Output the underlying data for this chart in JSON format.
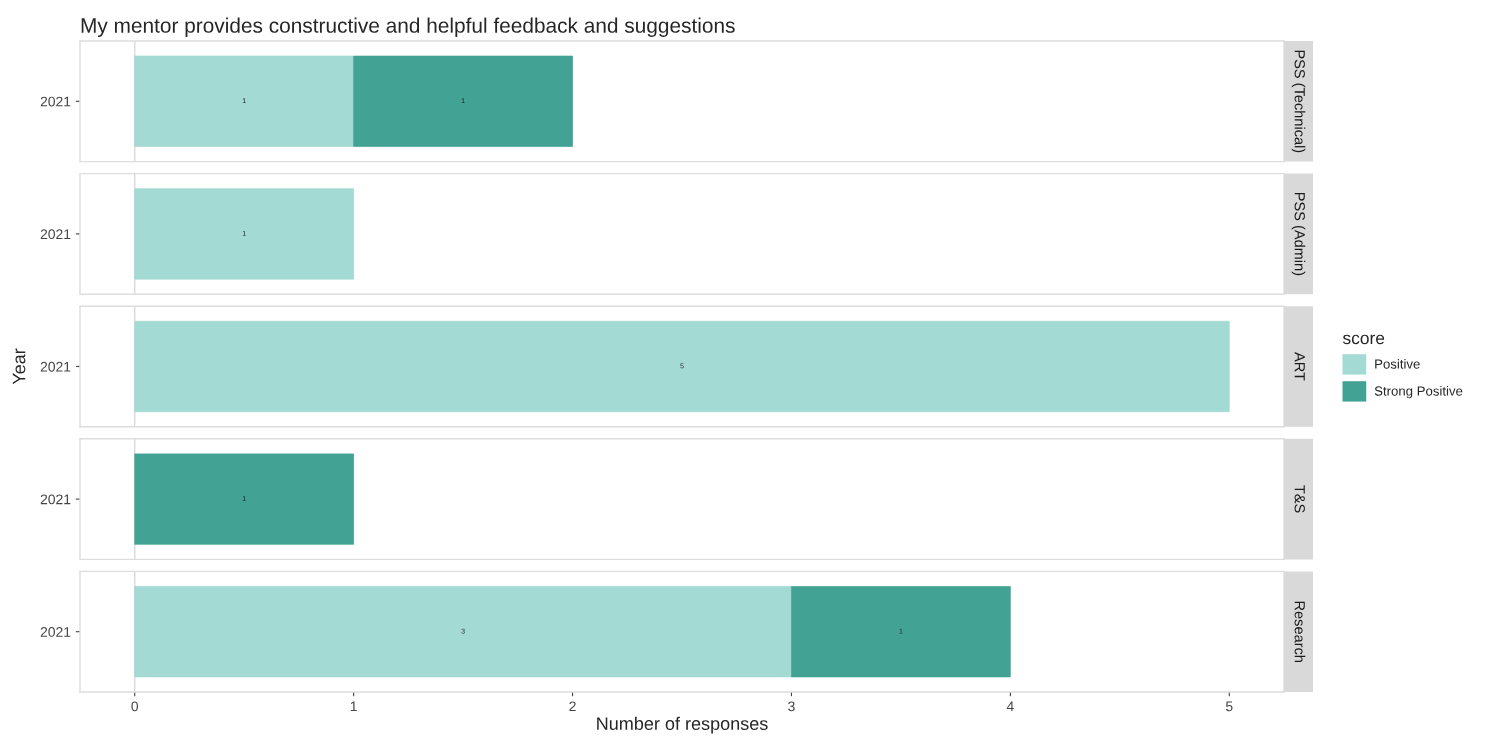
{
  "chart_data": [
    {
      "type": "bar",
      "title": "My mentor provides constructive and helpful feedback and suggestions",
      "y2label": "PSS (Technical)",
      "orientation": "horizontal",
      "stacked": true,
      "categories": [
        "2021"
      ],
      "xlim": [
        -0.25,
        5.25
      ],
      "xticks": [
        0,
        1,
        2,
        3,
        4,
        5
      ],
      "tick_labels": "y",
      "data_labels": true,
      "grid": false,
      "legend": false,
      "ref_lines": [
        {
          "axis": "x",
          "value": 0,
          "color": "#d9d9d9"
        }
      ],
      "series": [
        {
          "color": "#a3dad3",
          "values": [
            1
          ]
        },
        {
          "color": "#42a394",
          "values": [
            1
          ]
        }
      ]
    },
    {
      "type": "bar",
      "y2label": "PSS (Admin)",
      "orientation": "horizontal",
      "stacked": true,
      "categories": [
        "2021"
      ],
      "xlim": [
        -0.25,
        5.25
      ],
      "xticks": [
        0,
        1,
        2,
        3,
        4,
        5
      ],
      "tick_labels": "y",
      "data_labels": true,
      "grid": false,
      "legend": false,
      "ref_lines": [
        {
          "axis": "x",
          "value": 0,
          "color": "#d9d9d9"
        }
      ],
      "series": [
        {
          "color": "#a3dad3",
          "values": [
            1
          ]
        },
        {
          "color": "#42a394",
          "values": [
            null
          ]
        }
      ]
    },
    {
      "type": "bar",
      "y2label": "ART",
      "ylabel": "Year",
      "legend_title": "score",
      "orientation": "horizontal",
      "stacked": true,
      "categories": [
        "2021"
      ],
      "xlim": [
        -0.25,
        5.25
      ],
      "xticks": [
        0,
        1,
        2,
        3,
        4,
        5
      ],
      "tick_labels": "y",
      "data_labels": true,
      "grid": false,
      "legend": "right",
      "ref_lines": [
        {
          "axis": "x",
          "value": 0,
          "color": "#d9d9d9"
        }
      ],
      "series": [
        {
          "name": "Positive",
          "color": "#a3dad3",
          "values": [
            5
          ]
        },
        {
          "name": "Strong Positive",
          "color": "#42a394",
          "values": [
            null
          ]
        }
      ]
    },
    {
      "type": "bar",
      "y2label": "T&S",
      "orientation": "horizontal",
      "stacked": true,
      "categories": [
        "2021"
      ],
      "xlim": [
        -0.25,
        5.25
      ],
      "xticks": [
        0,
        1,
        2,
        3,
        4,
        5
      ],
      "tick_labels": "y",
      "data_labels": true,
      "grid": false,
      "legend": false,
      "ref_lines": [
        {
          "axis": "x",
          "value": 0,
          "color": "#d9d9d9"
        }
      ],
      "series": [
        {
          "color": "#a3dad3",
          "values": [
            null
          ]
        },
        {
          "color": "#42a394",
          "values": [
            1
          ]
        }
      ]
    },
    {
      "type": "bar",
      "y2label": "Research",
      "xlabel": "Number of responses",
      "orientation": "horizontal",
      "stacked": true,
      "categories": [
        "2021"
      ],
      "xlim": [
        -0.25,
        5.25
      ],
      "xticks": [
        0,
        1,
        2,
        3,
        4,
        5
      ],
      "data_labels": true,
      "grid": false,
      "legend": false,
      "ref_lines": [
        {
          "axis": "x",
          "value": 0,
          "color": "#d9d9d9"
        }
      ],
      "series": [
        {
          "color": "#a3dad3",
          "values": [
            3
          ]
        },
        {
          "color": "#42a394",
          "values": [
            1
          ]
        }
      ]
    }
  ]
}
